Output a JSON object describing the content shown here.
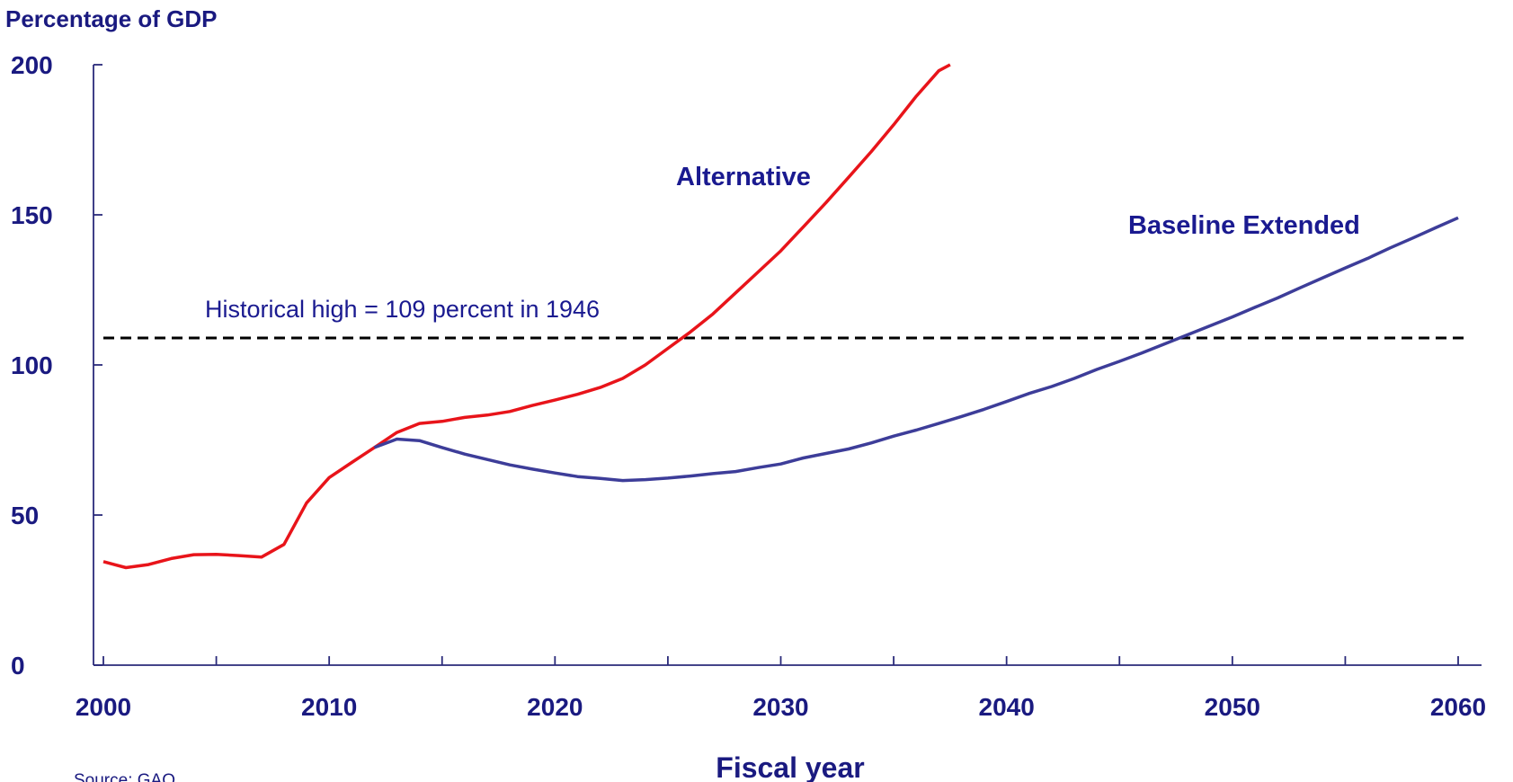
{
  "chart_data": {
    "type": "line",
    "ylabel": "Percentage of GDP",
    "xlabel": "Fiscal year",
    "xlim": [
      2000,
      2060
    ],
    "ylim": [
      0,
      200
    ],
    "x_ticks": [
      "2000",
      "2010",
      "2020",
      "2030",
      "2040",
      "2050",
      "2060"
    ],
    "y_ticks": [
      "0",
      "50",
      "100",
      "150",
      "200"
    ],
    "grid": false,
    "source_note": "Source: GAO.",
    "reference_line": {
      "value": 109,
      "label": "Historical high = 109 percent in 1946",
      "color": "#000000",
      "style": "dashed"
    },
    "series": [
      {
        "name": "Alternative",
        "color": "#e8141a",
        "points": [
          [
            2000,
            34.5
          ],
          [
            2001,
            32.5
          ],
          [
            2002,
            33.5
          ],
          [
            2003,
            35.5
          ],
          [
            2004,
            36.8
          ],
          [
            2005,
            36.9
          ],
          [
            2006,
            36.5
          ],
          [
            2007,
            36.0
          ],
          [
            2008,
            40.2
          ],
          [
            2009,
            54.0
          ],
          [
            2010,
            62.5
          ],
          [
            2011,
            67.5
          ],
          [
            2012,
            72.5
          ],
          [
            2013,
            77.5
          ],
          [
            2014,
            80.5
          ],
          [
            2015,
            81.2
          ],
          [
            2016,
            82.5
          ],
          [
            2017,
            83.3
          ],
          [
            2018,
            84.5
          ],
          [
            2019,
            86.5
          ],
          [
            2020,
            88.3
          ],
          [
            2021,
            90.2
          ],
          [
            2022,
            92.5
          ],
          [
            2023,
            95.5
          ],
          [
            2024,
            100.0
          ],
          [
            2025,
            105.5
          ],
          [
            2026,
            111.0
          ],
          [
            2027,
            117.0
          ],
          [
            2028,
            124.0
          ],
          [
            2029,
            131.0
          ],
          [
            2030,
            138.0
          ],
          [
            2031,
            146.0
          ],
          [
            2032,
            154.0
          ],
          [
            2033,
            162.5
          ],
          [
            2034,
            171.0
          ],
          [
            2035,
            180.0
          ],
          [
            2036,
            189.5
          ],
          [
            2037,
            198.0
          ],
          [
            2037.5,
            200.0
          ]
        ]
      },
      {
        "name": "Baseline Extended",
        "color": "#3d3d99",
        "points": [
          [
            2012,
            72.5
          ],
          [
            2013,
            75.3
          ],
          [
            2014,
            74.8
          ],
          [
            2015,
            72.5
          ],
          [
            2016,
            70.3
          ],
          [
            2017,
            68.5
          ],
          [
            2018,
            66.7
          ],
          [
            2019,
            65.3
          ],
          [
            2020,
            64.0
          ],
          [
            2021,
            62.8
          ],
          [
            2022,
            62.2
          ],
          [
            2023,
            61.5
          ],
          [
            2024,
            61.8
          ],
          [
            2025,
            62.3
          ],
          [
            2026,
            63.0
          ],
          [
            2027,
            63.8
          ],
          [
            2028,
            64.5
          ],
          [
            2029,
            65.8
          ],
          [
            2030,
            67.0
          ],
          [
            2031,
            69.0
          ],
          [
            2032,
            70.5
          ],
          [
            2033,
            72.0
          ],
          [
            2034,
            74.0
          ],
          [
            2035,
            76.3
          ],
          [
            2036,
            78.3
          ],
          [
            2037,
            80.5
          ],
          [
            2038,
            82.8
          ],
          [
            2039,
            85.2
          ],
          [
            2040,
            87.8
          ],
          [
            2041,
            90.5
          ],
          [
            2042,
            92.8
          ],
          [
            2043,
            95.5
          ],
          [
            2044,
            98.5
          ],
          [
            2045,
            101.2
          ],
          [
            2046,
            104.0
          ],
          [
            2047,
            107.0
          ],
          [
            2048,
            110.0
          ],
          [
            2049,
            113.0
          ],
          [
            2050,
            116.0
          ],
          [
            2051,
            119.2
          ],
          [
            2052,
            122.3
          ],
          [
            2053,
            125.7
          ],
          [
            2054,
            129.0
          ],
          [
            2055,
            132.3
          ],
          [
            2056,
            135.5
          ],
          [
            2057,
            139.0
          ],
          [
            2058,
            142.3
          ],
          [
            2059,
            145.7
          ],
          [
            2060,
            149.0
          ]
        ]
      }
    ],
    "annotations": [
      {
        "text": "Alternative",
        "series": "Alternative"
      },
      {
        "text": "Baseline Extended",
        "series": "Baseline Extended"
      }
    ]
  }
}
